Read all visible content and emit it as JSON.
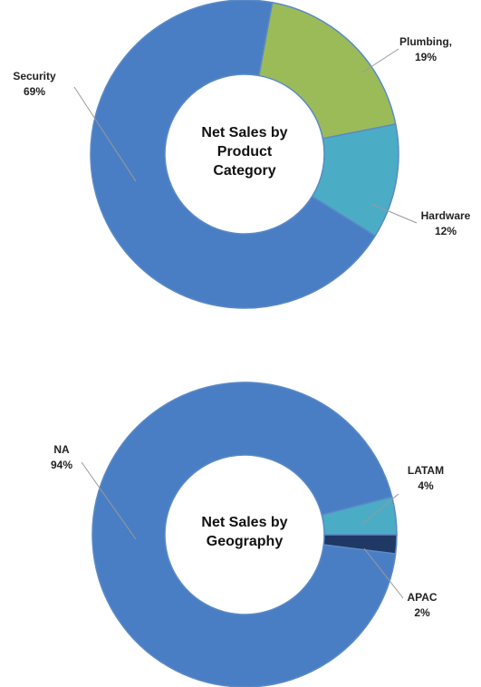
{
  "chart_data": [
    {
      "type": "donut",
      "title": "Net Sales by Product Category",
      "categories": [
        "Security",
        "Plumbing,",
        "Hardware"
      ],
      "values": [
        69,
        19,
        12
      ],
      "value_labels": [
        "69%",
        "19%",
        "12%"
      ],
      "colors": [
        "#4a7ec4",
        "#9bbb59",
        "#4bacc6"
      ]
    },
    {
      "type": "donut",
      "title": "Net Sales by Geography",
      "categories": [
        "NA",
        "LATAM",
        "APAC"
      ],
      "values": [
        94,
        4,
        2
      ],
      "value_labels": [
        "94%",
        "4%",
        "2%"
      ],
      "colors": [
        "#4a7ec4",
        "#4bacc6",
        "#1f3864"
      ]
    }
  ]
}
